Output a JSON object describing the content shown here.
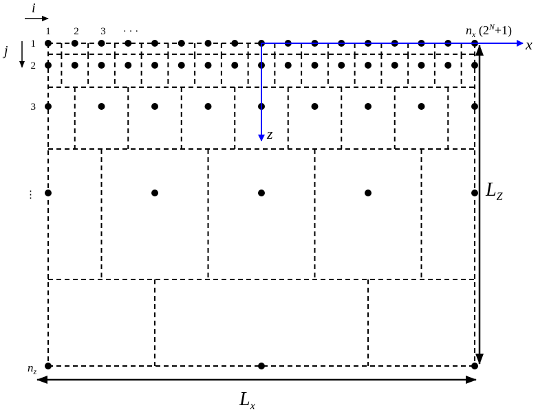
{
  "header": {
    "i": "i",
    "j": "j"
  },
  "columns": [
    "1",
    "2",
    "3",
    "· · ·"
  ],
  "rows": [
    "1",
    "2",
    "3",
    "⋮"
  ],
  "nx": {
    "n": "n",
    "sub": "x",
    "open": " (2",
    "sup": "N",
    "close": "+1)"
  },
  "nz": {
    "n": "n",
    "sub": "z"
  },
  "axes": {
    "x": "x",
    "z": "z"
  },
  "lengths": {
    "lz": {
      "L": "L",
      "sub": "Z"
    },
    "lx": {
      "L": "L",
      "sub": "x"
    }
  }
}
